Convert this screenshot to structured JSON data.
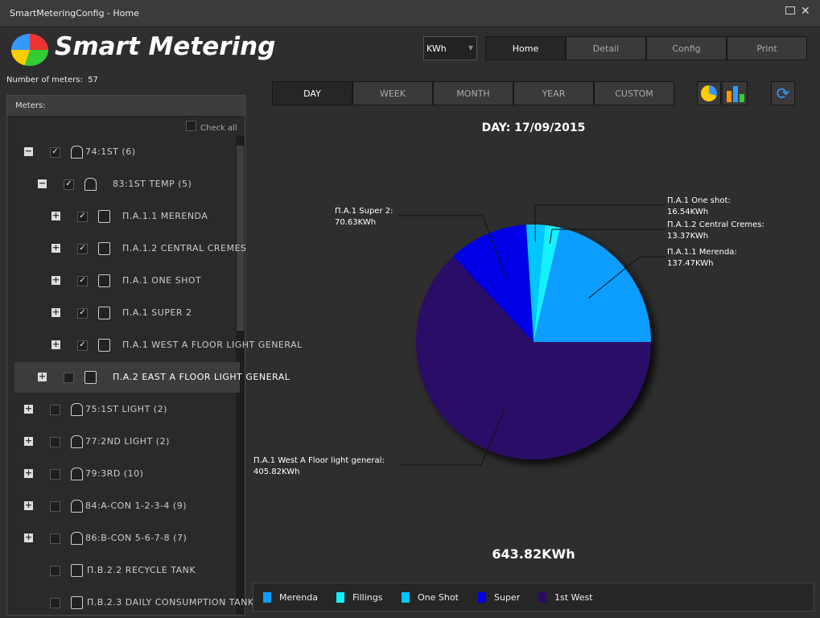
{
  "window": {
    "title": "SmartMeteringConfig - Home"
  },
  "header": {
    "app_title": "Smart Metering",
    "unit_selector": "KWh",
    "nav": [
      "Home",
      "Detail",
      "Config",
      "Print"
    ]
  },
  "sidebar": {
    "meter_count_label": "Number of meters:",
    "meter_count": "57",
    "panel_title": "Meters:",
    "check_all": "Check all",
    "tree": [
      "74:1ST (6)",
      "83:1ST TEMP (5)",
      "П.А.1.1 MERENDA",
      "П.А.1.2 CENTRAL CREMES",
      "П.А.1 ONE SHOT",
      "П.А.1 SUPER 2",
      "П.А.1 WEST A FLOOR LIGHT GENERAL",
      "П.А.2 EAST A FLOOR LIGHT GENERAL",
      "75:1ST LIGHT (2)",
      "77:2ND LIGHT (2)",
      "79:3RD (10)",
      "84:A-CON 1-2-3-4 (9)",
      "86:B-CON 5-6-7-8 (7)",
      "П.В.2.2 RECYCLE TANK",
      "П.В.2.3 DAILY CONSUMPTION TANK"
    ]
  },
  "periods": [
    "DAY",
    "WEEK",
    "MONTH",
    "YEAR",
    "CUSTOM"
  ],
  "chart_data": {
    "type": "pie",
    "title": "DAY: 17/09/2015",
    "categories": [
      "Merenda",
      "Fillings",
      "One Shot",
      "Super",
      "1st West"
    ],
    "slice_labels": [
      "П.А.1.1 Merenda:",
      "П.А.1.2 Central Cremes:",
      "П.А.1 One shot:",
      "П.А.1 Super 2:",
      "П.А.1 West A Floor light general:"
    ],
    "values": [
      137.47,
      13.37,
      16.54,
      70.63,
      405.82
    ],
    "value_labels": [
      "137.47KWh",
      "13.37KWh",
      "16.54KWh",
      "70.63KWh",
      "405.82KWh"
    ],
    "colors": [
      "#0d9dff",
      "#12f0ff",
      "#00c6ff",
      "#0000e6",
      "#2b0a66"
    ],
    "total": "643.82KWh"
  }
}
